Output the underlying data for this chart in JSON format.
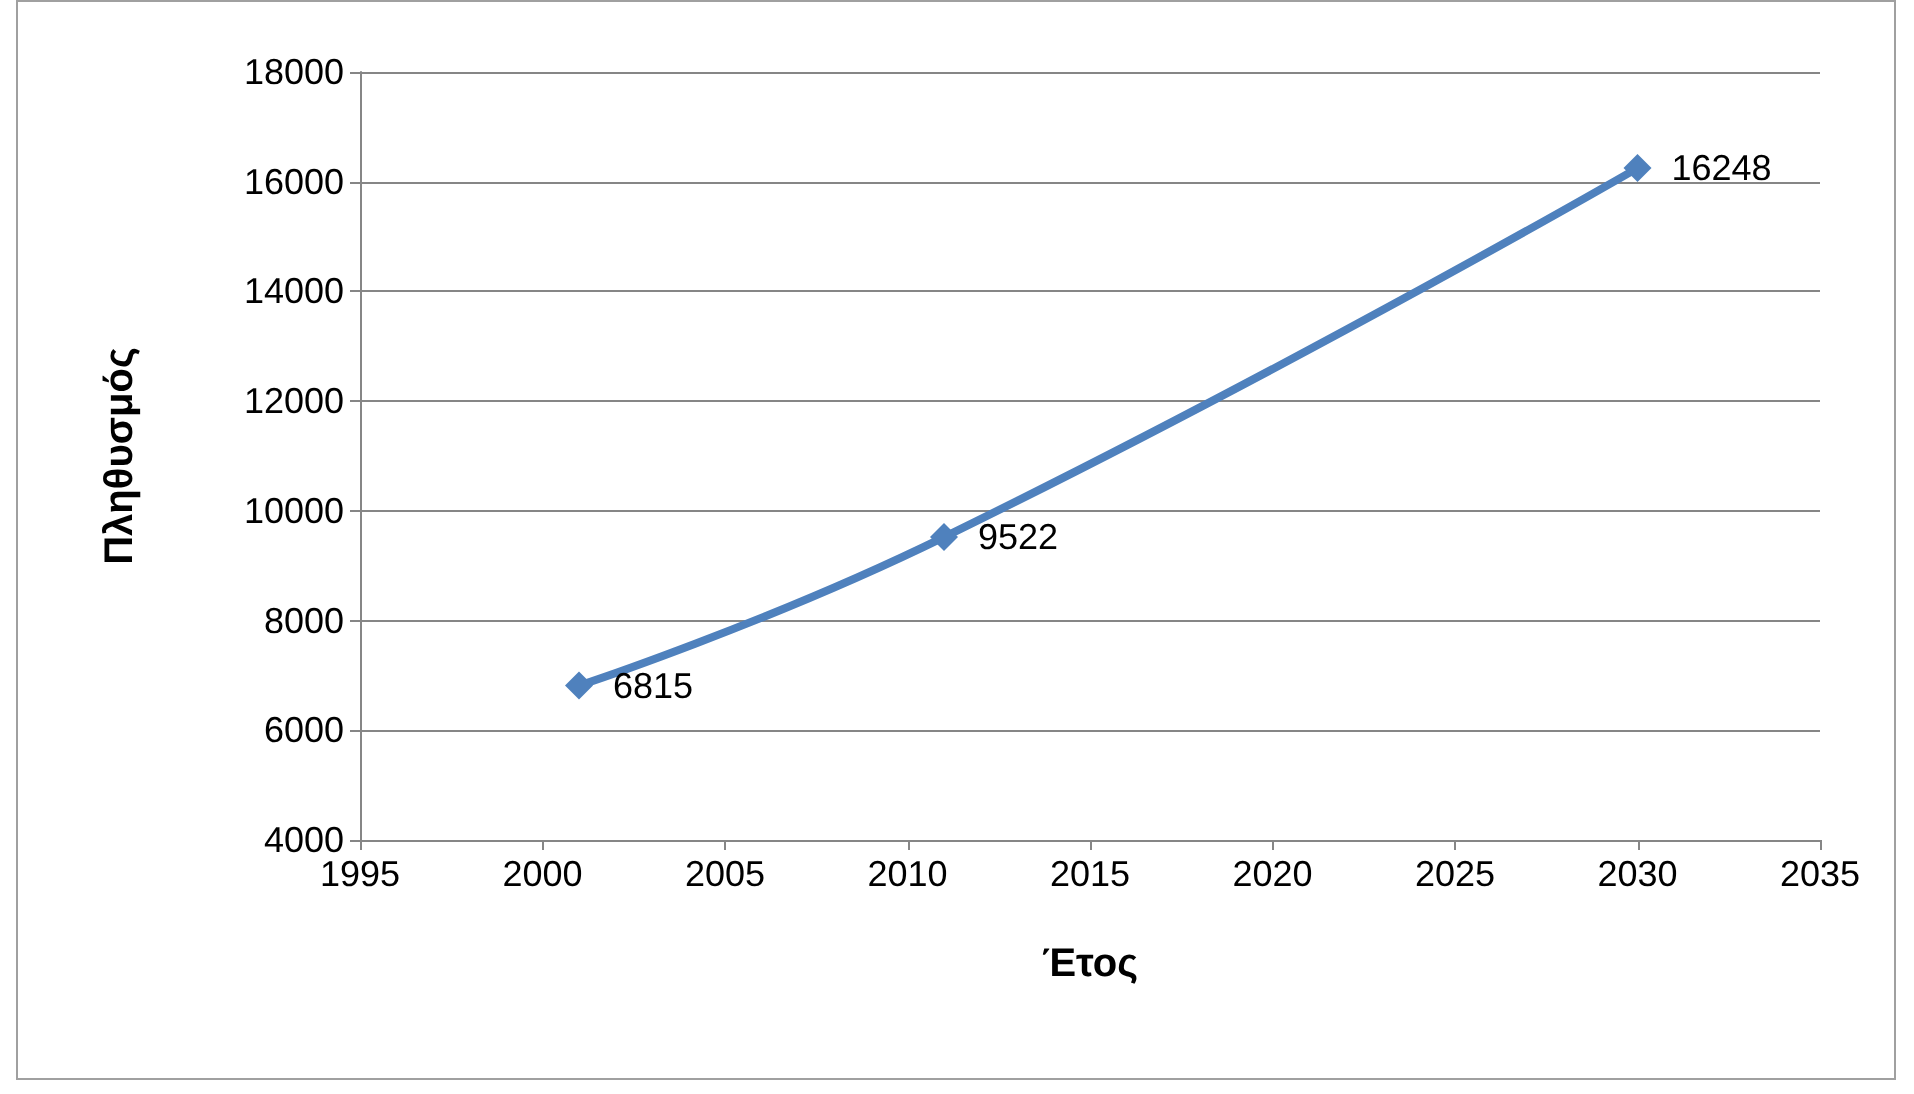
{
  "chart_data": {
    "type": "line",
    "xlabel": "Έτος",
    "ylabel": "Πληθυσμός",
    "x": [
      2001,
      2011,
      2030
    ],
    "series": [
      {
        "color": "#4f81bd",
        "values": [
          6815,
          9522,
          16248
        ]
      }
    ],
    "xlim": [
      1995,
      2035
    ],
    "xticks": [
      1995,
      2000,
      2005,
      2010,
      2015,
      2020,
      2025,
      2030,
      2035
    ],
    "ylim": [
      4000,
      18000
    ],
    "yticks": [
      4000,
      6000,
      8000,
      10000,
      12000,
      14000,
      16000,
      18000
    ],
    "grid": "y",
    "marker": "diamond",
    "line_style": "solid",
    "data_labels": true
  }
}
